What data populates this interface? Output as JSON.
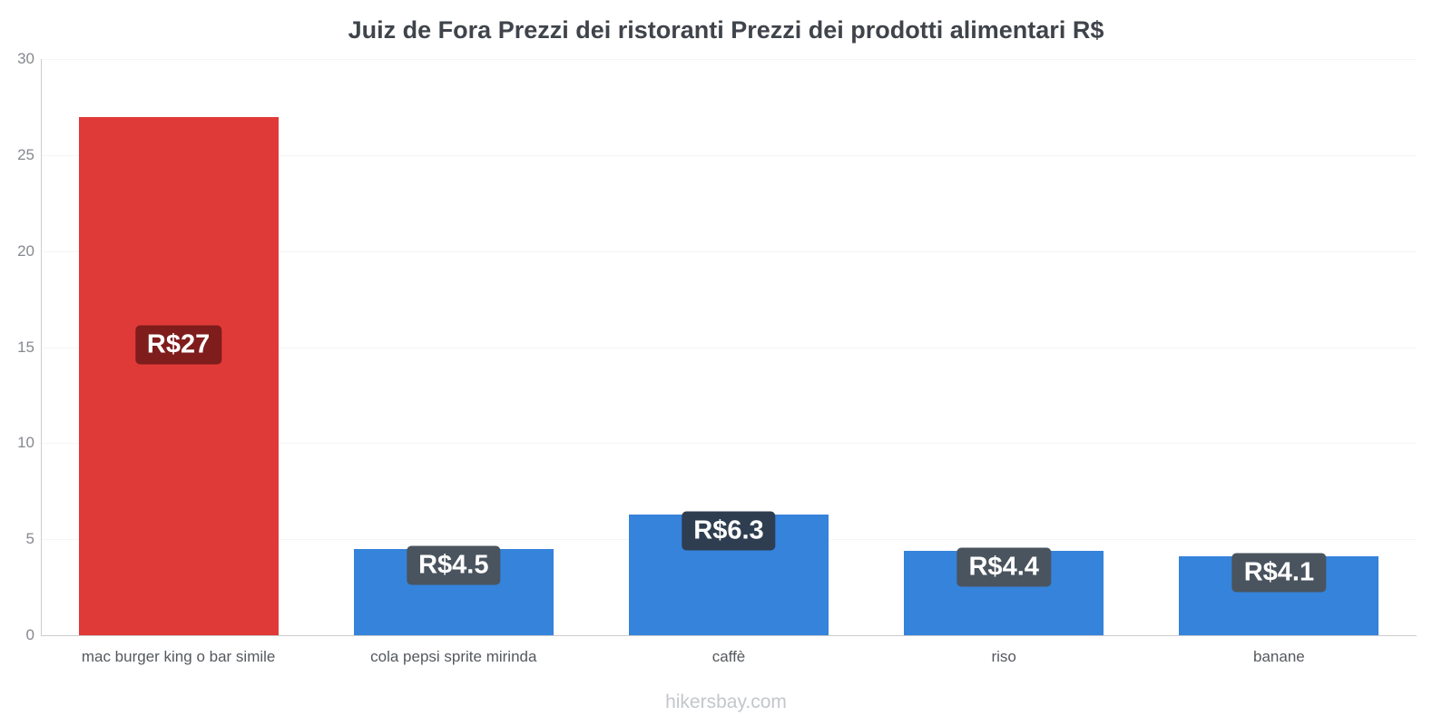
{
  "chart_data": {
    "type": "bar",
    "title": "Juiz de Fora Prezzi dei ristoranti Prezzi dei prodotti alimentari R$",
    "categories": [
      "mac burger king o bar simile",
      "cola pepsi sprite mirinda",
      "caffè",
      "riso",
      "banane"
    ],
    "values": [
      27,
      4.5,
      6.3,
      4.4,
      4.1
    ],
    "value_labels": [
      "R$27",
      "R$4.5",
      "R$6.3",
      "R$4.4",
      "R$4.1"
    ],
    "bar_colors": [
      "#e03a38",
      "#3583db",
      "#3583db",
      "#3583db",
      "#3583db"
    ],
    "label_bg_colors": [
      "#7e1d1c",
      "#4a545f",
      "#2e3e50",
      "#4a545f",
      "#4a545f"
    ],
    "xlabel": "",
    "ylabel": "",
    "ylim": [
      0,
      30
    ],
    "yticks": [
      0,
      5,
      10,
      15,
      20,
      25,
      30
    ],
    "grid": "faint-horizontal",
    "legend": "none"
  },
  "footer": {
    "text": "hikersbay.com"
  }
}
